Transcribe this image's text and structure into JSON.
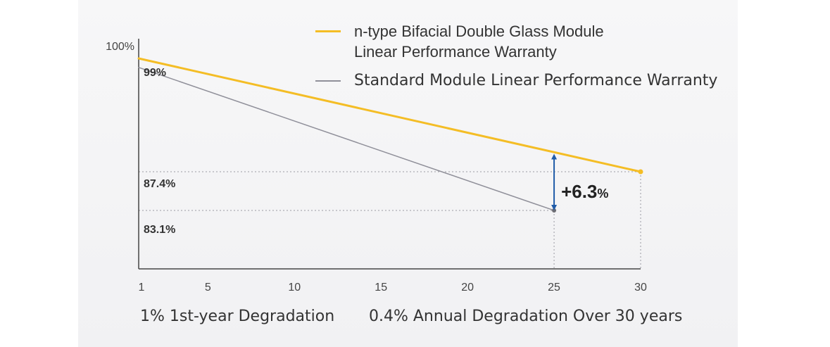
{
  "chart_data": {
    "type": "line",
    "y_axis_label": "100%",
    "x_ticks": [
      "1",
      "5",
      "10",
      "15",
      "20",
      "25",
      "30"
    ],
    "x": [
      1,
      25,
      30
    ],
    "series": [
      {
        "name": "n-type Bifacial Double Glass Module Linear Performance Warranty",
        "name_lines": [
          "n-type Bifacial Double Glass Module",
          "Linear Performance Warranty"
        ],
        "color": "#f4bd25",
        "points": [
          [
            1,
            100
          ],
          [
            30,
            87.4
          ]
        ]
      },
      {
        "name": "Standard Module Linear Performance Warranty",
        "color": "#8f8f99",
        "points": [
          [
            1,
            99
          ],
          [
            25,
            83.1
          ]
        ]
      }
    ],
    "annotations": {
      "start_label": "99%",
      "level_labels": [
        "87.4%",
        "83.1%"
      ],
      "difference": {
        "number": "+6.3",
        "unit": "%",
        "x": 25,
        "from": 83.1,
        "to": 89.4,
        "color": "#1f5ba8"
      }
    },
    "captions": [
      "1% 1st-year Degradation",
      "0.4% Annual Degradation Over 30 years"
    ]
  }
}
